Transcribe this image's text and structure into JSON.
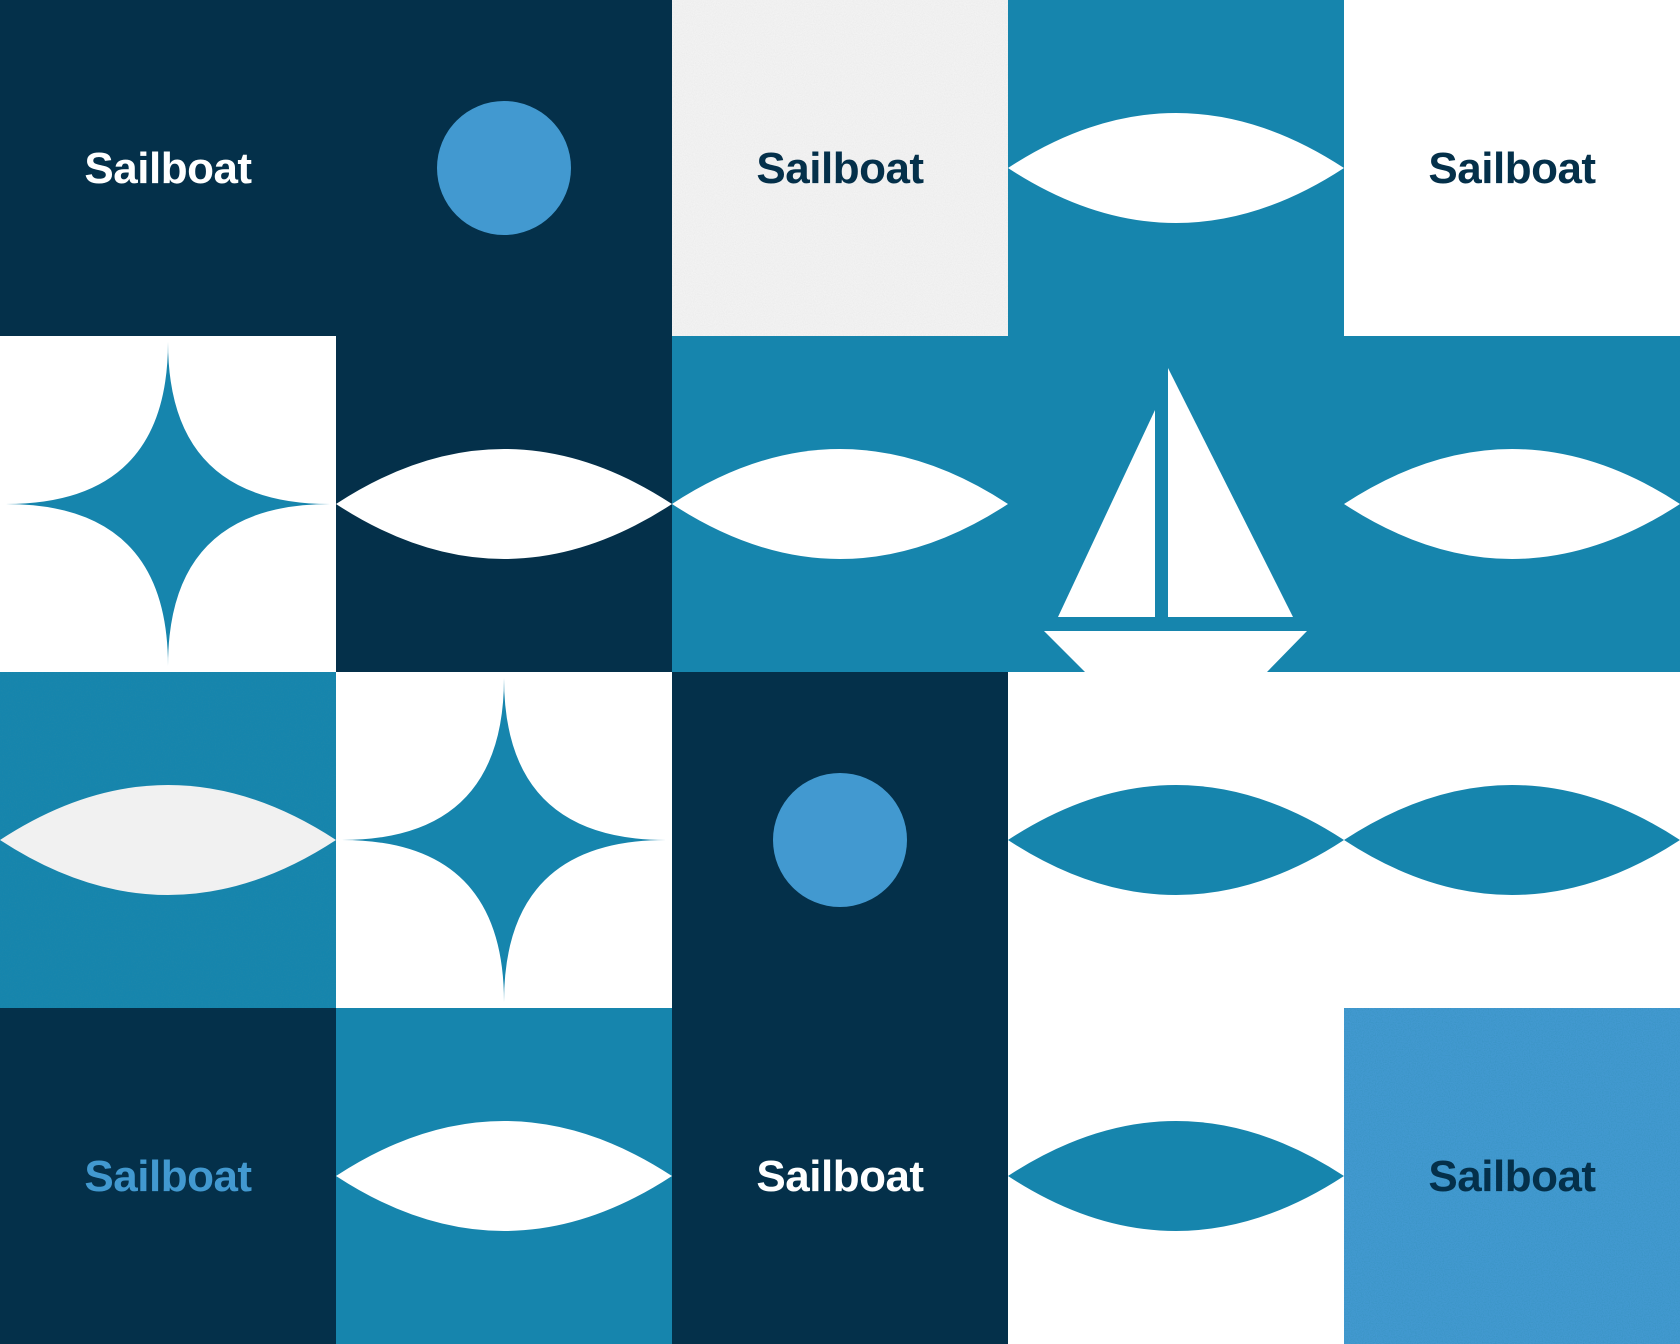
{
  "brand_word": "Sailboat",
  "colors": {
    "navy": "#04304a",
    "teal": "#1685ad",
    "sky": "#4299d0",
    "white": "#ffffff",
    "light_gray": "#e6e6e6"
  },
  "tiles": {
    "r1c1_label": "Sailboat",
    "r1c3_label": "Sailboat",
    "r1c5_label": "Sailboat",
    "r4c1_label": "Sailboat",
    "r4c3_label": "Sailboat",
    "r4c5_label": "Sailboat"
  },
  "icons": [
    "sun-circle-icon",
    "lens-wave-icon",
    "four-point-star-icon",
    "sailboat-icon"
  ]
}
